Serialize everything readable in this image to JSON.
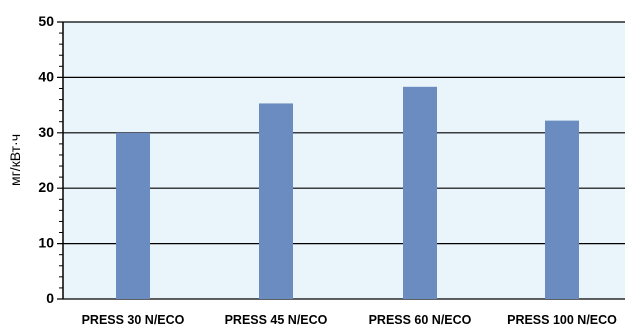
{
  "chart_data": {
    "type": "bar",
    "title": "",
    "xlabel": "",
    "ylabel": "мг/кВт·ч",
    "categories": [
      "PRESS 30 N/ECO",
      "PRESS 45 N/ECO",
      "PRESS 60 N/ECO",
      "PRESS 100 N/ECO"
    ],
    "values": [
      30,
      35.3,
      38.3,
      32.2
    ],
    "ylim": [
      0,
      50
    ],
    "yticks": [
      0,
      10,
      20,
      30,
      40,
      50
    ],
    "grid": true,
    "legend": "none",
    "colors": {
      "bar": "#6b8cc1",
      "plot_background": "#eaf4fb",
      "grid": "#000000",
      "axis": "#000000"
    }
  }
}
